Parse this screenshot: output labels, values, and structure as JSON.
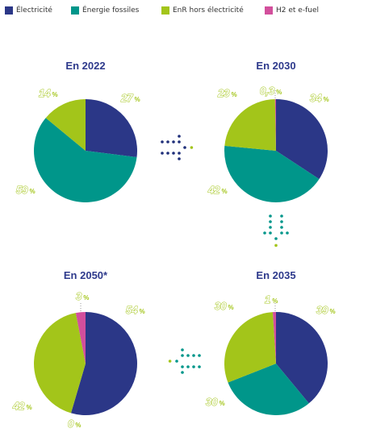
{
  "colors": {
    "electricite": "#2b3787",
    "fossiles": "#00968a",
    "enr": "#a3c51a",
    "h2": "#d24f9c",
    "title": "#2e3a8c",
    "dots": "#1f2f7a"
  },
  "legend": [
    {
      "label": "Électricité",
      "color_key": "electricite"
    },
    {
      "label": "Énergie fossiles",
      "color_key": "fossiles"
    },
    {
      "label": "EnR hors électricité",
      "color_key": "enr"
    },
    {
      "label": "H2 et e-fuel",
      "color_key": "h2"
    }
  ],
  "chart_data": [
    {
      "type": "pie",
      "title": "En 2022",
      "series": [
        {
          "name": "Électricité",
          "value": 27,
          "label": "27"
        },
        {
          "name": "Énergie fossiles",
          "value": 59,
          "label": "59"
        },
        {
          "name": "EnR hors électricité",
          "value": 14,
          "label": "14"
        }
      ]
    },
    {
      "type": "pie",
      "title": "En 2030",
      "series": [
        {
          "name": "Électricité",
          "value": 34,
          "label": "34"
        },
        {
          "name": "Énergie fossiles",
          "value": 42,
          "label": "42"
        },
        {
          "name": "EnR hors électricité",
          "value": 23,
          "label": "23"
        },
        {
          "name": "H2 et e-fuel",
          "value": 0.3,
          "label": "0,3"
        }
      ]
    },
    {
      "type": "pie",
      "title": "En 2035",
      "series": [
        {
          "name": "Électricité",
          "value": 39,
          "label": "39"
        },
        {
          "name": "Énergie fossiles",
          "value": 30,
          "label": "30"
        },
        {
          "name": "EnR hors électricité",
          "value": 30,
          "label": "30"
        },
        {
          "name": "H2 et e-fuel",
          "value": 1,
          "label": "1"
        }
      ]
    },
    {
      "type": "pie",
      "title": "En 2050*",
      "series": [
        {
          "name": "Électricité",
          "value": 54,
          "label": "54"
        },
        {
          "name": "Énergie fossiles",
          "value": 0,
          "label": "0"
        },
        {
          "name": "EnR hors électricité",
          "value": 42,
          "label": "42"
        },
        {
          "name": "H2 et e-fuel",
          "value": 3,
          "label": "3"
        }
      ]
    }
  ],
  "percent_sign": "%"
}
